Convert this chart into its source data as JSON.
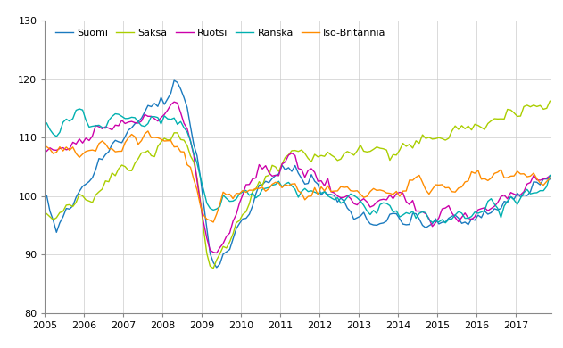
{
  "legend_labels": [
    "Suomi",
    "Saksa",
    "Ruotsi",
    "Ranska",
    "Iso-Britannia"
  ],
  "colors": [
    "#1a7abf",
    "#aace00",
    "#cc00aa",
    "#00b0b0",
    "#ff8c00"
  ],
  "ylim": [
    80,
    130
  ],
  "yticks": [
    80,
    90,
    100,
    110,
    120,
    130
  ],
  "xlim_start": 2005.0,
  "xlim_end": 2017.92,
  "xtick_years": [
    2005,
    2006,
    2007,
    2008,
    2009,
    2010,
    2011,
    2012,
    2013,
    2014,
    2015,
    2016,
    2017
  ],
  "background_color": "#ffffff",
  "grid_color": "#cccccc",
  "linewidth": 1.0
}
